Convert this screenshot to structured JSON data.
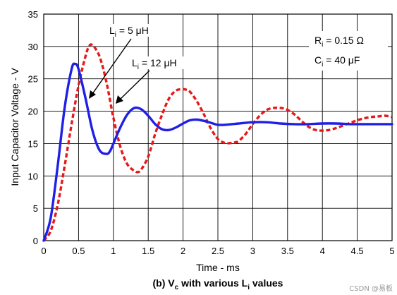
{
  "chart_data": {
    "type": "line",
    "caption": {
      "prefix": "(b) V",
      "sub1": "c",
      "mid": " with various L",
      "sub2": "i",
      "suffix": " values"
    },
    "xlabel": "Time - ms",
    "ylabel": "Input Capacitor Voltage - V",
    "xlim": [
      0,
      5
    ],
    "ylim": [
      0,
      35
    ],
    "xticks": [
      "0",
      "0.5",
      "1",
      "1.5",
      "2",
      "2.5",
      "3",
      "3.5",
      "4",
      "4.5",
      "5"
    ],
    "yticks": [
      "0",
      "5",
      "10",
      "15",
      "20",
      "25",
      "30",
      "35"
    ],
    "grid": true,
    "annotations": {
      "li5": {
        "base": "L",
        "sub": "i",
        "rest": " = 5 μH"
      },
      "li12": {
        "base": "L",
        "sub": "i",
        "rest": " = 12 μH"
      },
      "ri": {
        "base": "R",
        "sub": "i",
        "rest": " = 0.15 Ω"
      },
      "ci": {
        "base": "C",
        "sub": "i",
        "rest": " = 40 μF"
      }
    },
    "series": [
      {
        "name": "L_i = 5 μH",
        "color": "#1f1fe6",
        "style": "solid",
        "x": [
          0,
          0.1,
          0.2,
          0.3,
          0.4,
          0.45,
          0.5,
          0.6,
          0.7,
          0.8,
          0.9,
          0.95,
          1.0,
          1.1,
          1.2,
          1.3,
          1.4,
          1.5,
          1.6,
          1.7,
          1.8,
          1.9,
          2.0,
          2.1,
          2.2,
          2.3,
          2.4,
          2.5,
          2.6,
          2.8,
          3.0,
          3.2,
          3.4,
          3.6,
          3.8,
          4.0,
          4.2,
          4.4,
          4.6,
          4.8,
          5.0
        ],
        "values": [
          0,
          3.5,
          11.5,
          20.5,
          26.5,
          27.3,
          26.5,
          22,
          17,
          14,
          13.4,
          13.8,
          15,
          17.5,
          19.5,
          20.5,
          20.3,
          19.3,
          18,
          17.2,
          17.1,
          17.5,
          18.1,
          18.6,
          18.7,
          18.5,
          18.2,
          17.9,
          17.9,
          18.1,
          18.3,
          18.3,
          18.1,
          18,
          18,
          18.1,
          18.1,
          18,
          18,
          18,
          18
        ]
      },
      {
        "name": "L_i = 12 μH",
        "color": "#e61919",
        "style": "dashed",
        "x": [
          0,
          0.1,
          0.2,
          0.3,
          0.4,
          0.5,
          0.6,
          0.65,
          0.7,
          0.8,
          0.9,
          1.0,
          1.1,
          1.2,
          1.3,
          1.35,
          1.4,
          1.5,
          1.6,
          1.7,
          1.8,
          1.9,
          2.0,
          2.05,
          2.1,
          2.2,
          2.3,
          2.4,
          2.5,
          2.6,
          2.7,
          2.75,
          2.8,
          2.9,
          3.0,
          3.1,
          3.2,
          3.3,
          3.4,
          3.45,
          3.5,
          3.6,
          3.7,
          3.8,
          3.9,
          4.0,
          4.1,
          4.2,
          4.3,
          4.4,
          4.5,
          4.6,
          4.7,
          4.8,
          4.9,
          5.0
        ],
        "values": [
          0,
          1.5,
          5.5,
          11.5,
          18,
          24,
          28.5,
          30,
          30.2,
          28.5,
          24.5,
          19,
          14.5,
          11.8,
          10.8,
          10.6,
          11,
          13,
          16.5,
          19.5,
          22,
          23.2,
          23.4,
          23.3,
          23,
          21.5,
          19.5,
          17.3,
          15.7,
          15.1,
          15.1,
          15.2,
          15.4,
          16.5,
          18,
          19.3,
          20.2,
          20.5,
          20.5,
          20.4,
          20.2,
          19.5,
          18.5,
          17.6,
          17.1,
          17,
          17.1,
          17.4,
          17.8,
          18.2,
          18.6,
          18.9,
          19.1,
          19.2,
          19.3,
          19.1
        ]
      }
    ]
  },
  "watermark": "CSDN @易板"
}
